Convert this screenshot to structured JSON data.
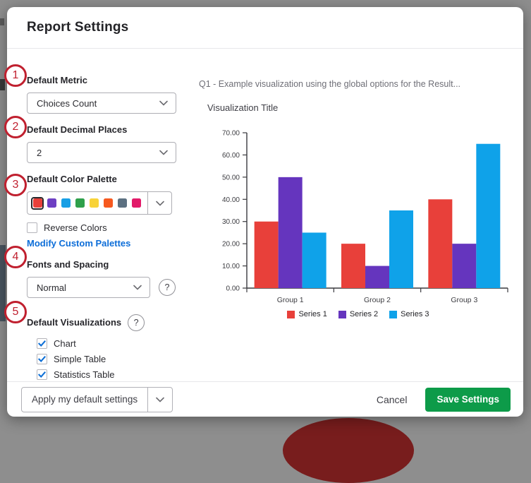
{
  "modal": {
    "title": "Report Settings"
  },
  "settings": {
    "default_metric": {
      "label": "Default Metric",
      "value": "Choices Count"
    },
    "default_decimal_places": {
      "label": "Default Decimal Places",
      "value": "2"
    },
    "default_color_palette": {
      "label": "Default Color Palette",
      "swatches": [
        "#e8403a",
        "#6d3fc3",
        "#189fe5",
        "#2ea04b",
        "#f8d339",
        "#f6591f",
        "#5c7081",
        "#e21a69"
      ],
      "selected_swatch_index": 0,
      "reverse_colors": {
        "label": "Reverse Colors",
        "checked": false
      },
      "modify_custom_palettes_link": "Modify Custom Palettes"
    },
    "fonts_and_spacing": {
      "label": "Fonts and Spacing",
      "value": "Normal",
      "help": "?"
    },
    "default_visualizations": {
      "label": "Default Visualizations",
      "help": "?",
      "options": [
        {
          "label": "Chart",
          "checked": true
        },
        {
          "label": "Simple Table",
          "checked": true
        },
        {
          "label": "Statistics Table",
          "checked": true
        }
      ]
    }
  },
  "preview": {
    "question_header": "Q1 - Example visualization using the global options for the Result...",
    "visualization_title": "Visualization Title"
  },
  "chart_data": {
    "type": "bar",
    "title": "Visualization Title",
    "categories": [
      "Group 1",
      "Group 2",
      "Group 3"
    ],
    "series": [
      {
        "name": "Series 1",
        "color": "#e8403a",
        "values": [
          30,
          20,
          40
        ]
      },
      {
        "name": "Series 2",
        "color": "#6535be",
        "values": [
          50,
          10,
          20
        ]
      },
      {
        "name": "Series 3",
        "color": "#0fa2e9",
        "values": [
          25,
          35,
          65
        ]
      }
    ],
    "ylim": [
      0,
      70
    ],
    "ytick_step": 10,
    "ytick_labels": [
      "0.00",
      "10.00",
      "20.00",
      "30.00",
      "40.00",
      "50.00",
      "60.00",
      "70.00"
    ],
    "xlabel": "",
    "ylabel": "",
    "grid": false,
    "legend_position": "bottom"
  },
  "footer": {
    "apply_button": "Apply my default settings",
    "cancel_button": "Cancel",
    "save_button": "Save Settings"
  },
  "annotations": {
    "step_numbers": [
      "1",
      "2",
      "3",
      "4",
      "5"
    ]
  },
  "colors": {
    "save_green": "#0d9b49",
    "link_blue": "#0c6dd8",
    "check_blue": "#0e6fd6",
    "annotation_red": "#c0202f",
    "overlay_gray": "#8e8e8e"
  }
}
